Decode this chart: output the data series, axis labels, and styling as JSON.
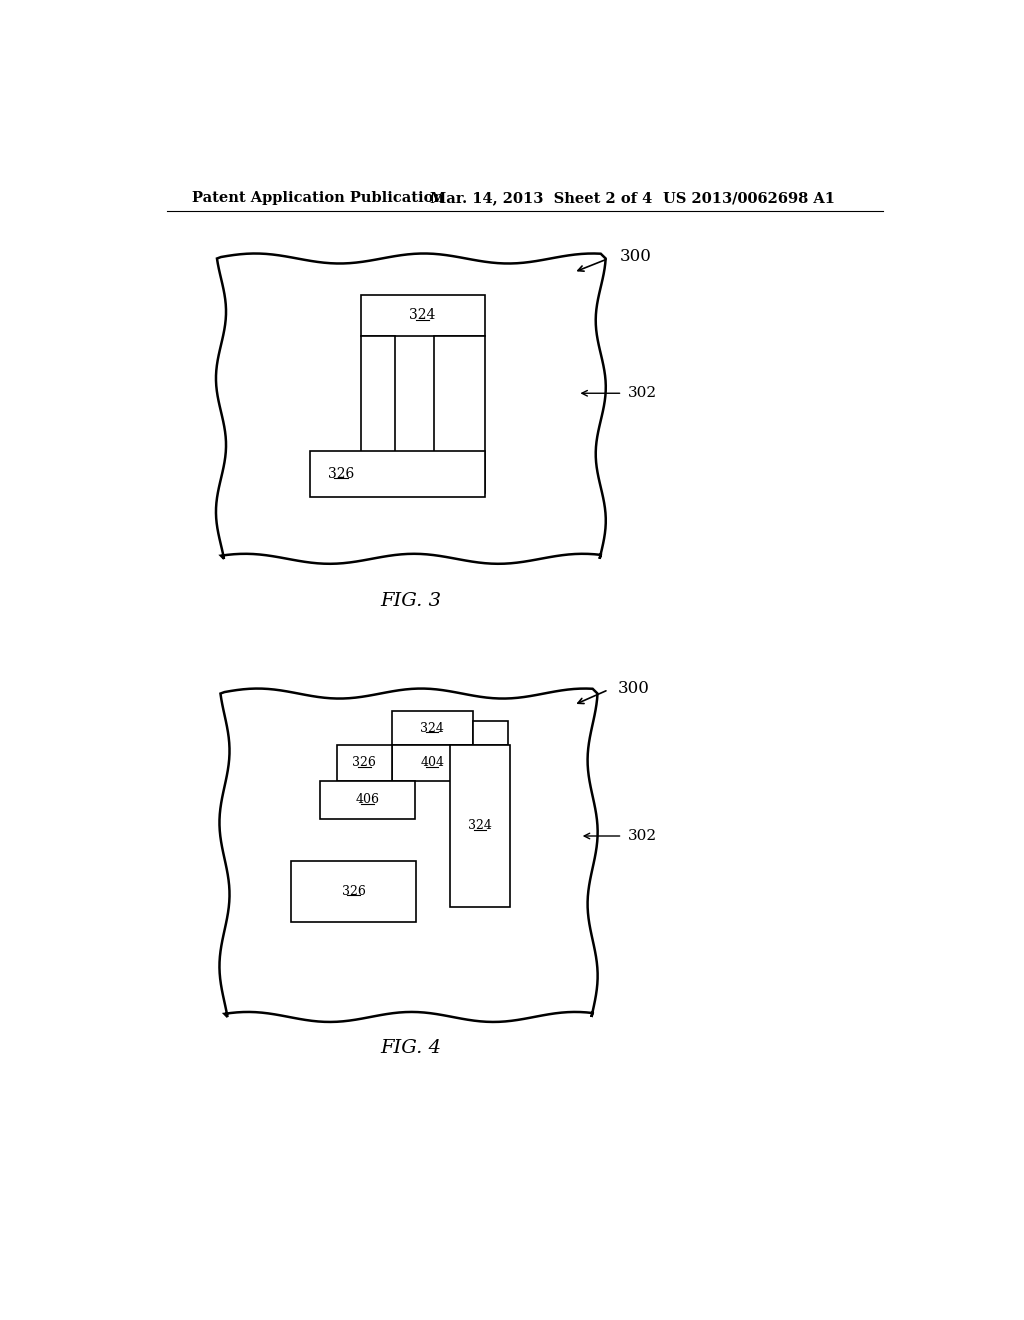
{
  "header_left": "Patent Application Publication",
  "header_mid": "Mar. 14, 2013  Sheet 2 of 4",
  "header_right": "US 2013/0062698 A1",
  "fig3_caption": "FIG. 3",
  "fig4_caption": "FIG. 4",
  "label_300": "300",
  "label_302": "302",
  "label_324": "324",
  "label_326": "326",
  "label_404": "404",
  "label_406": "406",
  "background_color": "#ffffff",
  "line_color": "#000000"
}
